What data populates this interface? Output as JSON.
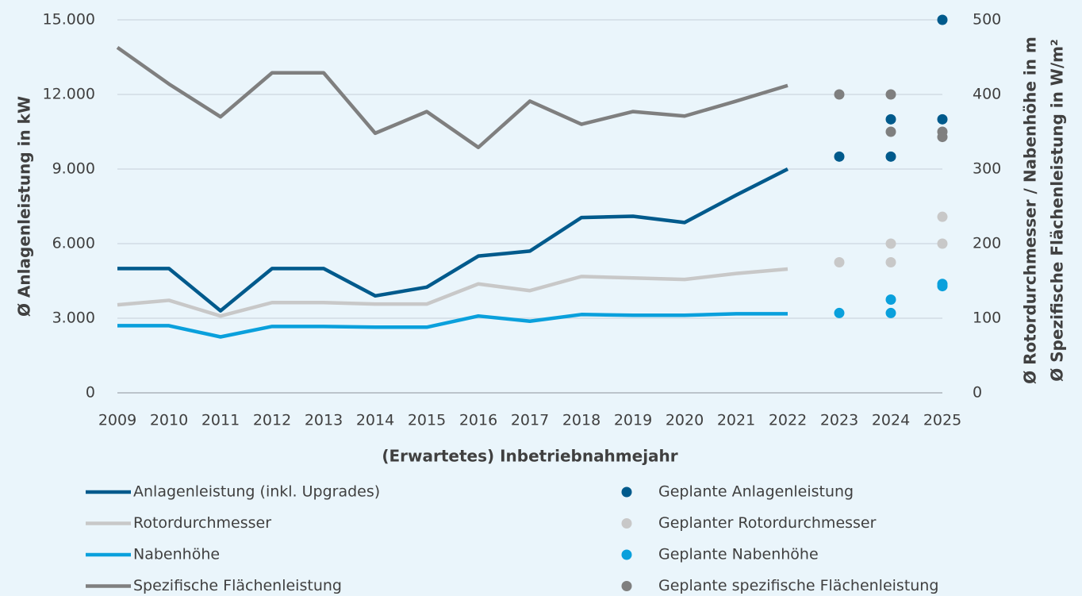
{
  "chart_data": {
    "type": "line",
    "y_label": "Ø Anlagenleistung in kW",
    "y2_label": [
      "Ø Rotordurchmesser / Nabenhöhe in m",
      "Ø Spezifische Flächenleistung in W/m²"
    ],
    "x_label": "(Erwartetes) Inbetriebnahmejahr",
    "x": [
      2009,
      2010,
      2011,
      2012,
      2013,
      2014,
      2015,
      2016,
      2017,
      2018,
      2019,
      2020,
      2021,
      2022,
      2023,
      2024,
      2025
    ],
    "xlim": [
      2009,
      2025
    ],
    "xticks": [
      2009,
      2010,
      2011,
      2012,
      2013,
      2014,
      2015,
      2016,
      2017,
      2018,
      2019,
      2020,
      2021,
      2022,
      2023,
      2024,
      2025
    ],
    "ylim": [
      0,
      15000
    ],
    "yticks": [
      0,
      {
        "value": 3000,
        "label": "3.000"
      },
      {
        "value": 6000,
        "label": "6.000"
      },
      {
        "value": 9000,
        "label": "9.000"
      },
      {
        "value": 12000,
        "label": "12.000"
      },
      {
        "value": 15000,
        "label": "15.000"
      }
    ],
    "y2lim": [
      0,
      500
    ],
    "y2ticks": [
      0,
      100,
      200,
      300,
      400,
      500
    ],
    "grid": true,
    "series": [
      {
        "name": "Anlagenleistung (inkl. Upgrades)",
        "type": "line",
        "color": "#005a8c",
        "values": [
          5000,
          5000,
          3300,
          5000,
          5000,
          3900,
          4250,
          5500,
          5700,
          7050,
          7100,
          6850,
          7950,
          9000,
          null,
          null,
          null
        ]
      },
      {
        "name": "Rotordurchmesser",
        "type": "line",
        "color": "#c8c8c8",
        "axis": "y2",
        "values": [
          118,
          124,
          103,
          121,
          121,
          119,
          119,
          146,
          137,
          156,
          154,
          152,
          160,
          166,
          null,
          null,
          null
        ]
      },
      {
        "name": "Nabenhöhe",
        "type": "line",
        "color": "#0aa0dc",
        "axis": "y2",
        "values": [
          90,
          90,
          75,
          89,
          89,
          88,
          88,
          103,
          96,
          105,
          104,
          104,
          106,
          106,
          null,
          null,
          null
        ]
      },
      {
        "name": "Spezifische Flächenleistung",
        "type": "line",
        "color": "#7f7f7f",
        "axis": "y2",
        "values": [
          463,
          414,
          370,
          429,
          429,
          348,
          377,
          329,
          391,
          360,
          377,
          371,
          391,
          412,
          null,
          null,
          null
        ]
      },
      {
        "name": "Geplante Anlagenleistung",
        "type": "scatter",
        "color": "#005a8c",
        "x": [
          2023,
          2024,
          2024,
          2025,
          2025
        ],
        "values": [
          9500,
          9500,
          11000,
          15000,
          11000
        ]
      },
      {
        "name": "Geplanter Rotordurchmesser",
        "type": "scatter",
        "color": "#c8c8c8",
        "axis": "y2",
        "x": [
          2023,
          2024,
          2024,
          2025,
          2025
        ],
        "values": [
          175,
          175,
          200,
          200,
          236
        ]
      },
      {
        "name": "Geplante Nabenhöhe",
        "type": "scatter",
        "color": "#0aa0dc",
        "axis": "y2",
        "x": [
          2023,
          2024,
          2024,
          2025,
          2025
        ],
        "values": [
          107,
          107,
          125,
          146,
          143
        ]
      },
      {
        "name": "Geplante spezifische Flächenleistung",
        "type": "scatter",
        "color": "#7f7f7f",
        "axis": "y2",
        "x": [
          2023,
          2024,
          2024,
          2025,
          2025
        ],
        "values": [
          400,
          400,
          350,
          350,
          343
        ]
      }
    ]
  }
}
